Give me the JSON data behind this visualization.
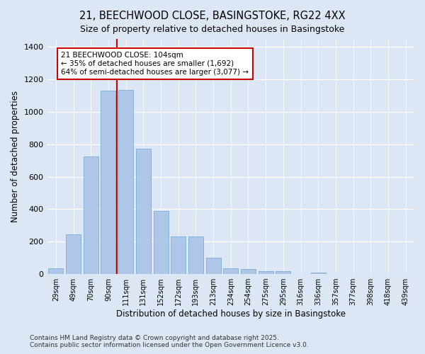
{
  "title": "21, BEECHWOOD CLOSE, BASINGSTOKE, RG22 4XX",
  "subtitle": "Size of property relative to detached houses in Basingstoke",
  "xlabel": "Distribution of detached houses by size in Basingstoke",
  "ylabel": "Number of detached properties",
  "categories": [
    "29sqm",
    "49sqm",
    "70sqm",
    "90sqm",
    "111sqm",
    "131sqm",
    "152sqm",
    "172sqm",
    "193sqm",
    "213sqm",
    "234sqm",
    "254sqm",
    "275sqm",
    "295sqm",
    "316sqm",
    "336sqm",
    "357sqm",
    "377sqm",
    "398sqm",
    "418sqm",
    "439sqm"
  ],
  "values": [
    35,
    245,
    725,
    1130,
    1135,
    775,
    390,
    230,
    230,
    100,
    35,
    30,
    20,
    17,
    0,
    10,
    0,
    0,
    0,
    0,
    0
  ],
  "bar_color": "#aec6e8",
  "bar_edge_color": "#7aadd4",
  "annotation_line1": "21 BEECHWOOD CLOSE: 104sqm",
  "annotation_line2": "← 35% of detached houses are smaller (1,692)",
  "annotation_line3": "64% of semi-detached houses are larger (3,077) →",
  "annotation_box_facecolor": "#ffffff",
  "annotation_box_edgecolor": "#cc0000",
  "vline_color": "#cc0000",
  "vline_x": 3.5,
  "ylim": [
    0,
    1450
  ],
  "yticks": [
    0,
    200,
    400,
    600,
    800,
    1000,
    1200,
    1400
  ],
  "bg_color": "#dce6f5",
  "grid_color": "#ffffff",
  "footnote1": "Contains HM Land Registry data © Crown copyright and database right 2025.",
  "footnote2": "Contains public sector information licensed under the Open Government Licence v3.0."
}
